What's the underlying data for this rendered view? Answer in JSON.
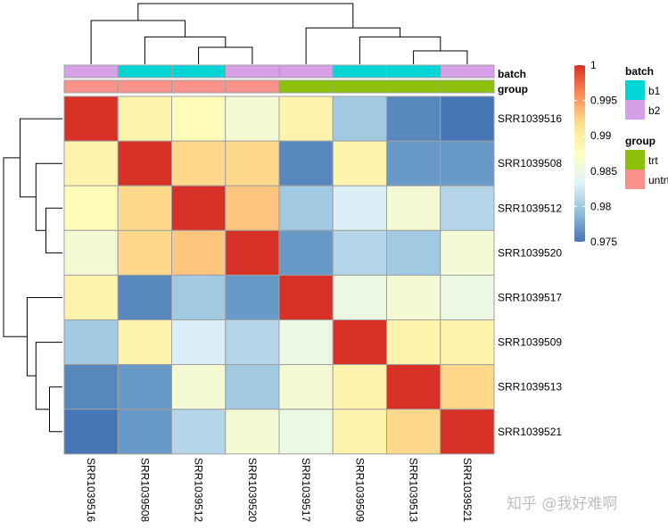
{
  "chart_data": {
    "type": "heatmap",
    "samples": [
      "SRR1039516",
      "SRR1039508",
      "SRR1039512",
      "SRR1039520",
      "SRR1039517",
      "SRR1039509",
      "SRR1039513",
      "SRR1039521"
    ],
    "matrix": [
      [
        1.0,
        0.989,
        0.988,
        0.986,
        0.989,
        0.98,
        0.976,
        0.975
      ],
      [
        0.989,
        1.0,
        0.992,
        0.992,
        0.976,
        0.989,
        0.977,
        0.977
      ],
      [
        0.988,
        0.992,
        1.0,
        0.993,
        0.98,
        0.983,
        0.986,
        0.981
      ],
      [
        0.986,
        0.992,
        0.993,
        1.0,
        0.977,
        0.981,
        0.98,
        0.986
      ],
      [
        0.989,
        0.976,
        0.98,
        0.977,
        1.0,
        0.985,
        0.986,
        0.985
      ],
      [
        0.98,
        0.989,
        0.983,
        0.981,
        0.985,
        1.0,
        0.989,
        0.989
      ],
      [
        0.976,
        0.977,
        0.986,
        0.98,
        0.986,
        0.989,
        1.0,
        0.992
      ],
      [
        0.975,
        0.977,
        0.981,
        0.986,
        0.985,
        0.989,
        0.992,
        1.0
      ]
    ],
    "annotations": {
      "batch": [
        "b2",
        "b1",
        "b1",
        "b2",
        "b2",
        "b1",
        "b1",
        "b2"
      ],
      "group": [
        "untrt",
        "untrt",
        "untrt",
        "untrt",
        "trt",
        "trt",
        "trt",
        "trt"
      ]
    },
    "annotation_titles": {
      "batch": "batch",
      "group": "group"
    },
    "annotation_colors": {
      "batch": {
        "b1": "#00D6D6",
        "b2": "#D79FE8"
      },
      "group": {
        "trt": "#8CC00A",
        "untrt": "#F9928B"
      }
    },
    "legend": {
      "colorbar_ticks": [
        "1",
        "0.995",
        "0.99",
        "0.985",
        "0.98",
        "0.975"
      ],
      "colorbar_values": [
        1,
        0.995,
        0.99,
        0.985,
        0.98,
        0.975
      ],
      "range": [
        0.975,
        1.0
      ],
      "batch_title": "batch",
      "batch_items": [
        "b1",
        "b2"
      ],
      "group_title": "group",
      "group_items": [
        "trt",
        "untrt"
      ]
    },
    "palette": [
      "#4575B4",
      "#91BFDB",
      "#E0F3F8",
      "#FFFFBF",
      "#FEE090",
      "#FC8D59",
      "#D73027"
    ],
    "cell_border_color": "#A0A0A0",
    "dendrogram": "hierarchical clustering, identical for rows and columns"
  },
  "watermark": "知乎 @我好难啊"
}
